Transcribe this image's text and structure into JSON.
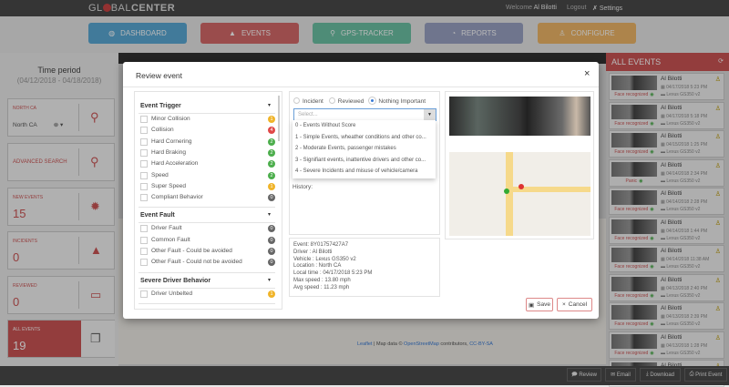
{
  "header": {
    "logo_left": "GL",
    "logo_mid": "BAL",
    "logo_bold": "CENTER",
    "welcome_prefix": "Welcome",
    "user": "Al Bilotti",
    "logout": "Logout",
    "settings": "Settings"
  },
  "nav": [
    {
      "label": "DASHBOARD",
      "icon": "dashboard-icon",
      "color": "#5aa9d6"
    },
    {
      "label": "EVENTS",
      "icon": "warning-icon",
      "color": "#d66a6a"
    },
    {
      "label": "GPS-TRACKER",
      "icon": "map-pin-icon",
      "color": "#6cc3a6"
    },
    {
      "label": "REPORTS",
      "icon": "pie-chart-icon",
      "color": "#9aa3c4"
    },
    {
      "label": "CONFIGURE",
      "icon": "user-icon",
      "color": "#f0b868"
    }
  ],
  "sidebar": {
    "time_period_title": "Time period",
    "time_period_range": "(04/12/2018 - 04/18/2018)",
    "region_label": "NORTH CA",
    "region_value": "North CA",
    "advanced_search": "ADVANCED SEARCH",
    "new_events_label": "NEW EVENTS",
    "new_events": "15",
    "incidents_label": "INCIDENTS",
    "incidents": "0",
    "reviewed_label": "REVIEWED",
    "reviewed": "0",
    "all_events_label": "ALL EVENTS",
    "all_events": "19"
  },
  "modal": {
    "title": "Review event",
    "close": "×",
    "event_trigger": {
      "title": "Event Trigger",
      "items": [
        {
          "label": "Minor Collision",
          "count": "1",
          "color": "#f0b429"
        },
        {
          "label": "Collision",
          "count": "4",
          "color": "#e04848"
        },
        {
          "label": "Hard Cornering",
          "count": "2",
          "color": "#4cae4c"
        },
        {
          "label": "Hard Braking",
          "count": "2",
          "color": "#4cae4c"
        },
        {
          "label": "Hard Acceleration",
          "count": "2",
          "color": "#4cae4c"
        },
        {
          "label": "Speed",
          "count": "2",
          "color": "#4cae4c"
        },
        {
          "label": "Super Speed",
          "count": "1",
          "color": "#f0b429"
        },
        {
          "label": "Compliant Behavior",
          "count": "0",
          "color": "#666"
        }
      ]
    },
    "event_fault": {
      "title": "Event Fault",
      "items": [
        {
          "label": "Driver Fault",
          "count": "0",
          "color": "#666"
        },
        {
          "label": "Common Fault",
          "count": "0",
          "color": "#666"
        },
        {
          "label": "Other Fault - Could be avoided",
          "count": "0",
          "color": "#666"
        },
        {
          "label": "Other Fault - Could not be avoided",
          "count": "0",
          "color": "#666"
        }
      ]
    },
    "severe": {
      "title": "Severe Driver Behavior",
      "items": [
        {
          "label": "Driver Unbelted",
          "count": "1",
          "color": "#f0b429"
        }
      ]
    },
    "status_options": [
      "Incident",
      "Reviewed",
      "Nothing Important"
    ],
    "status_selected": "Nothing Important",
    "score_placeholder": "Select...",
    "score_options": [
      "0 - Events Without Score",
      "1 - Simple Events, wheather conditions and other co...",
      "2 - Moderate Events, passenger mistakes",
      "3 - Signifiant events, inattentive drivers and other co...",
      "4 - Severe Incidents and misuse of vehicle/camera"
    ],
    "history_label": "History:",
    "info": [
      "Event: 8Y01757427A7",
      "Driver : Al Bilotti",
      "Vehicle : Lexus GS350 v2",
      "Location : North CA",
      "Local time : 04/17/2018 5:23 PM",
      "Max speed : 13.80 mph",
      "Avg speed : 11.23 mph"
    ],
    "save": "Save",
    "cancel": "Cancel"
  },
  "map_attribution": {
    "leaflet": "Leaflet",
    "mid": " | Map data © ",
    "osm": "OpenStreetMap",
    "contrib": " contributors, ",
    "license": "CC-BY-SA"
  },
  "events_panel": {
    "title": "ALL EVENTS",
    "items": [
      {
        "driver": "Al Bilotti",
        "time": "04/17/2018 5:23 PM",
        "vehicle": "Lexus GS350 v2",
        "tag": "Face recognized"
      },
      {
        "driver": "Al Bilotti",
        "time": "04/17/2018 5:18 PM",
        "vehicle": "Lexus GS350 v2",
        "tag": "Face recognized"
      },
      {
        "driver": "Al Bilotti",
        "time": "04/15/2018 1:25 PM",
        "vehicle": "Lexus GS350 v2",
        "tag": "Face recognized"
      },
      {
        "driver": "Al Bilotti",
        "time": "04/14/2018 2:34 PM",
        "vehicle": "Lexus GS350 v2",
        "tag": "Panic"
      },
      {
        "driver": "Al Bilotti",
        "time": "04/14/2018 2:28 PM",
        "vehicle": "Lexus GS350 v2",
        "tag": "Face recognized"
      },
      {
        "driver": "Al Bilotti",
        "time": "04/14/2018 1:44 PM",
        "vehicle": "Lexus GS350 v2",
        "tag": "Face recognized"
      },
      {
        "driver": "Al Bilotti",
        "time": "04/14/2018 11:38 AM",
        "vehicle": "Lexus GS350 v2",
        "tag": "Face recognized"
      },
      {
        "driver": "Al Bilotti",
        "time": "04/13/2018 2:40 PM",
        "vehicle": "Lexus GS350 v2",
        "tag": "Face recognized"
      },
      {
        "driver": "Al Bilotti",
        "time": "04/13/2018 2:39 PM",
        "vehicle": "Lexus GS350 v2",
        "tag": "Face recognized"
      },
      {
        "driver": "Al Bilotti",
        "time": "04/13/2018 1:28 PM",
        "vehicle": "Lexus GS350 v2",
        "tag": "Face recognized"
      },
      {
        "driver": "Al Bilotti",
        "time": "",
        "vehicle": "",
        "tag": ""
      }
    ]
  },
  "footer": {
    "review": "Review",
    "email": "Email",
    "download": "Download",
    "print": "Print Event"
  }
}
